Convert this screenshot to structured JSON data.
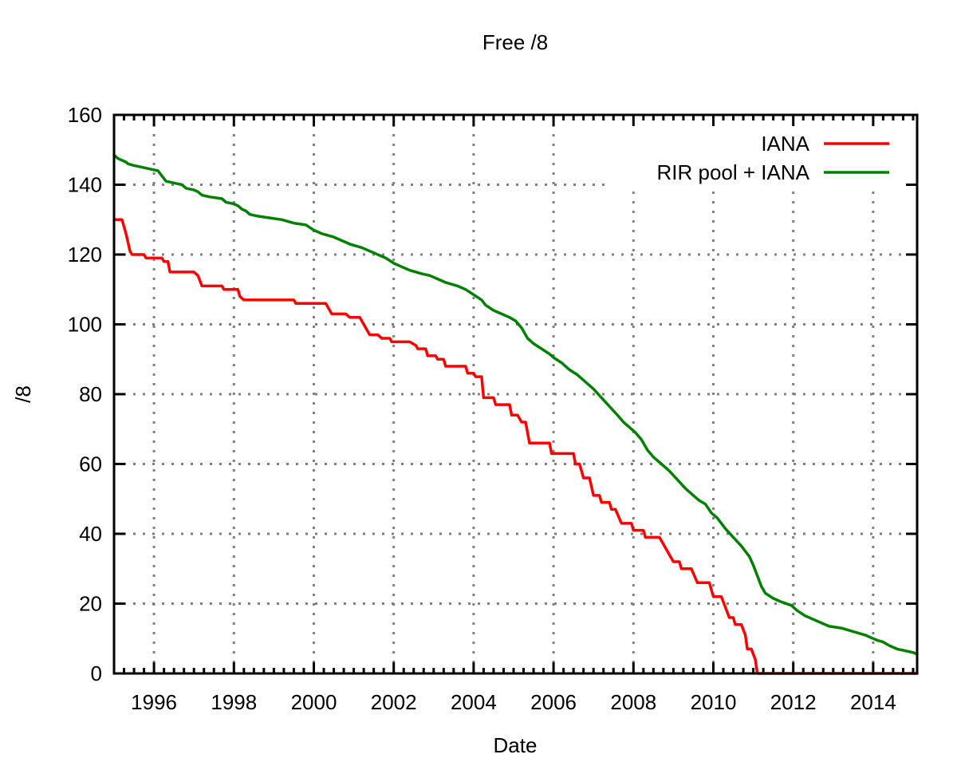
{
  "chart_data": {
    "type": "line",
    "title": "Free /8",
    "xlabel": "Date",
    "ylabel": "/8",
    "xlim": [
      1995.0,
      2015.1
    ],
    "ylim": [
      0,
      160
    ],
    "xticks": [
      1996,
      1998,
      2000,
      2002,
      2004,
      2006,
      2008,
      2010,
      2012,
      2014
    ],
    "yticks": [
      0,
      20,
      40,
      60,
      80,
      100,
      120,
      140,
      160
    ],
    "grid": true,
    "legend_position": "top-right",
    "series": [
      {
        "name": "IANA",
        "color": "#ff0000",
        "points": [
          [
            1995.0,
            130
          ],
          [
            1995.2,
            130
          ],
          [
            1995.3,
            126
          ],
          [
            1995.4,
            121
          ],
          [
            1995.45,
            120
          ],
          [
            1995.7,
            120
          ],
          [
            1995.75,
            120
          ],
          [
            1995.8,
            119
          ],
          [
            1996.0,
            119
          ],
          [
            1996.2,
            119
          ],
          [
            1996.25,
            118
          ],
          [
            1996.35,
            118
          ],
          [
            1996.4,
            115
          ],
          [
            1997.0,
            115
          ],
          [
            1997.1,
            114
          ],
          [
            1997.2,
            111
          ],
          [
            1997.7,
            111
          ],
          [
            1997.75,
            110
          ],
          [
            1998.0,
            110
          ],
          [
            1998.1,
            110
          ],
          [
            1998.15,
            108
          ],
          [
            1998.25,
            107
          ],
          [
            1999.5,
            107
          ],
          [
            1999.55,
            106
          ],
          [
            2000.3,
            106
          ],
          [
            2000.35,
            105
          ],
          [
            2000.45,
            103
          ],
          [
            2000.8,
            103
          ],
          [
            2000.9,
            102
          ],
          [
            2001.15,
            102
          ],
          [
            2001.3,
            99
          ],
          [
            2001.4,
            97
          ],
          [
            2001.6,
            97
          ],
          [
            2001.7,
            96
          ],
          [
            2001.9,
            96
          ],
          [
            2001.95,
            95
          ],
          [
            2002.4,
            95
          ],
          [
            2002.55,
            94
          ],
          [
            2002.6,
            93
          ],
          [
            2002.8,
            93
          ],
          [
            2002.85,
            91
          ],
          [
            2003.05,
            91
          ],
          [
            2003.1,
            90
          ],
          [
            2003.25,
            90
          ],
          [
            2003.3,
            88
          ],
          [
            2003.8,
            88
          ],
          [
            2003.85,
            86
          ],
          [
            2004.0,
            86
          ],
          [
            2004.05,
            85
          ],
          [
            2004.2,
            85
          ],
          [
            2004.25,
            79
          ],
          [
            2004.5,
            79
          ],
          [
            2004.55,
            77
          ],
          [
            2004.9,
            77
          ],
          [
            2004.95,
            74
          ],
          [
            2005.1,
            74
          ],
          [
            2005.2,
            72
          ],
          [
            2005.3,
            72
          ],
          [
            2005.4,
            66
          ],
          [
            2005.9,
            66
          ],
          [
            2005.95,
            63
          ],
          [
            2006.5,
            63
          ],
          [
            2006.55,
            60
          ],
          [
            2006.65,
            60
          ],
          [
            2006.75,
            56
          ],
          [
            2006.9,
            56
          ],
          [
            2007.0,
            51
          ],
          [
            2007.15,
            51
          ],
          [
            2007.2,
            49
          ],
          [
            2007.4,
            49
          ],
          [
            2007.45,
            47
          ],
          [
            2007.55,
            47
          ],
          [
            2007.7,
            43
          ],
          [
            2007.95,
            43
          ],
          [
            2008.0,
            41
          ],
          [
            2008.25,
            41
          ],
          [
            2008.3,
            39
          ],
          [
            2008.65,
            39
          ],
          [
            2008.75,
            37
          ],
          [
            2008.9,
            34
          ],
          [
            2009.0,
            32
          ],
          [
            2009.15,
            32
          ],
          [
            2009.2,
            30
          ],
          [
            2009.45,
            30
          ],
          [
            2009.6,
            26
          ],
          [
            2009.9,
            26
          ],
          [
            2010.0,
            22
          ],
          [
            2010.2,
            22
          ],
          [
            2010.3,
            19
          ],
          [
            2010.4,
            16
          ],
          [
            2010.5,
            16
          ],
          [
            2010.55,
            14
          ],
          [
            2010.7,
            14
          ],
          [
            2010.8,
            11
          ],
          [
            2010.85,
            7
          ],
          [
            2010.95,
            7
          ],
          [
            2011.05,
            4
          ],
          [
            2011.1,
            0
          ],
          [
            2015.1,
            0
          ]
        ]
      },
      {
        "name": "RIR pool + IANA",
        "color": "#008000",
        "points": [
          [
            1995.0,
            148.5
          ],
          [
            1995.1,
            147.5
          ],
          [
            1995.2,
            147
          ],
          [
            1995.3,
            146.5
          ],
          [
            1995.35,
            146
          ],
          [
            1995.5,
            145.5
          ],
          [
            1995.7,
            145
          ],
          [
            1995.9,
            144.5
          ],
          [
            1996.1,
            144
          ],
          [
            1996.2,
            142.5
          ],
          [
            1996.3,
            141
          ],
          [
            1996.5,
            140.5
          ],
          [
            1996.7,
            140
          ],
          [
            1996.8,
            139
          ],
          [
            1997.0,
            138.5
          ],
          [
            1997.1,
            138
          ],
          [
            1997.2,
            137
          ],
          [
            1997.4,
            136.5
          ],
          [
            1997.7,
            136
          ],
          [
            1997.8,
            135
          ],
          [
            1998.0,
            134.5
          ],
          [
            1998.1,
            134
          ],
          [
            1998.2,
            133
          ],
          [
            1998.3,
            132.5
          ],
          [
            1998.4,
            131.5
          ],
          [
            1998.6,
            131
          ],
          [
            1998.9,
            130.5
          ],
          [
            1999.2,
            130
          ],
          [
            1999.5,
            129
          ],
          [
            1999.8,
            128.5
          ],
          [
            2000.0,
            127
          ],
          [
            2000.2,
            126
          ],
          [
            2000.5,
            125
          ],
          [
            2000.7,
            124
          ],
          [
            2000.9,
            123
          ],
          [
            2001.2,
            122
          ],
          [
            2001.5,
            120.5
          ],
          [
            2001.8,
            119
          ],
          [
            2002.0,
            117.5
          ],
          [
            2002.2,
            116.5
          ],
          [
            2002.4,
            115.5
          ],
          [
            2002.7,
            114.5
          ],
          [
            2002.9,
            114
          ],
          [
            2003.1,
            113
          ],
          [
            2003.3,
            112
          ],
          [
            2003.6,
            111
          ],
          [
            2003.8,
            110
          ],
          [
            2004.0,
            108.5
          ],
          [
            2004.2,
            107
          ],
          [
            2004.3,
            105.5
          ],
          [
            2004.5,
            104
          ],
          [
            2004.7,
            103
          ],
          [
            2004.9,
            102
          ],
          [
            2005.05,
            101
          ],
          [
            2005.2,
            99
          ],
          [
            2005.35,
            96
          ],
          [
            2005.5,
            94.5
          ],
          [
            2005.7,
            93
          ],
          [
            2005.9,
            91.5
          ],
          [
            2006.0,
            90.5
          ],
          [
            2006.2,
            89
          ],
          [
            2006.4,
            87
          ],
          [
            2006.6,
            85.5
          ],
          [
            2006.8,
            83.5
          ],
          [
            2007.0,
            81.5
          ],
          [
            2007.2,
            79
          ],
          [
            2007.4,
            76.5
          ],
          [
            2007.6,
            74
          ],
          [
            2007.75,
            72
          ],
          [
            2007.9,
            70.5
          ],
          [
            2008.05,
            69
          ],
          [
            2008.2,
            67
          ],
          [
            2008.35,
            64
          ],
          [
            2008.5,
            62
          ],
          [
            2008.7,
            60
          ],
          [
            2008.9,
            58
          ],
          [
            2009.1,
            55.5
          ],
          [
            2009.3,
            53
          ],
          [
            2009.5,
            51
          ],
          [
            2009.65,
            49.5
          ],
          [
            2009.8,
            48.5
          ],
          [
            2009.95,
            46
          ],
          [
            2010.1,
            44.5
          ],
          [
            2010.3,
            41.5
          ],
          [
            2010.5,
            39
          ],
          [
            2010.7,
            36.5
          ],
          [
            2010.9,
            33.5
          ],
          [
            2011.0,
            31
          ],
          [
            2011.1,
            28
          ],
          [
            2011.2,
            25
          ],
          [
            2011.3,
            23
          ],
          [
            2011.5,
            21.5
          ],
          [
            2011.7,
            20.5
          ],
          [
            2011.95,
            19.5
          ],
          [
            2012.1,
            18
          ],
          [
            2012.3,
            16.5
          ],
          [
            2012.5,
            15.5
          ],
          [
            2012.7,
            14.5
          ],
          [
            2012.9,
            13.5
          ],
          [
            2013.2,
            13
          ],
          [
            2013.5,
            12
          ],
          [
            2013.8,
            11
          ],
          [
            2014.0,
            10
          ],
          [
            2014.1,
            9.5
          ],
          [
            2014.25,
            9
          ],
          [
            2014.4,
            8
          ],
          [
            2014.6,
            7
          ],
          [
            2014.8,
            6.5
          ],
          [
            2015.0,
            6
          ],
          [
            2015.1,
            5.5
          ]
        ]
      }
    ]
  }
}
